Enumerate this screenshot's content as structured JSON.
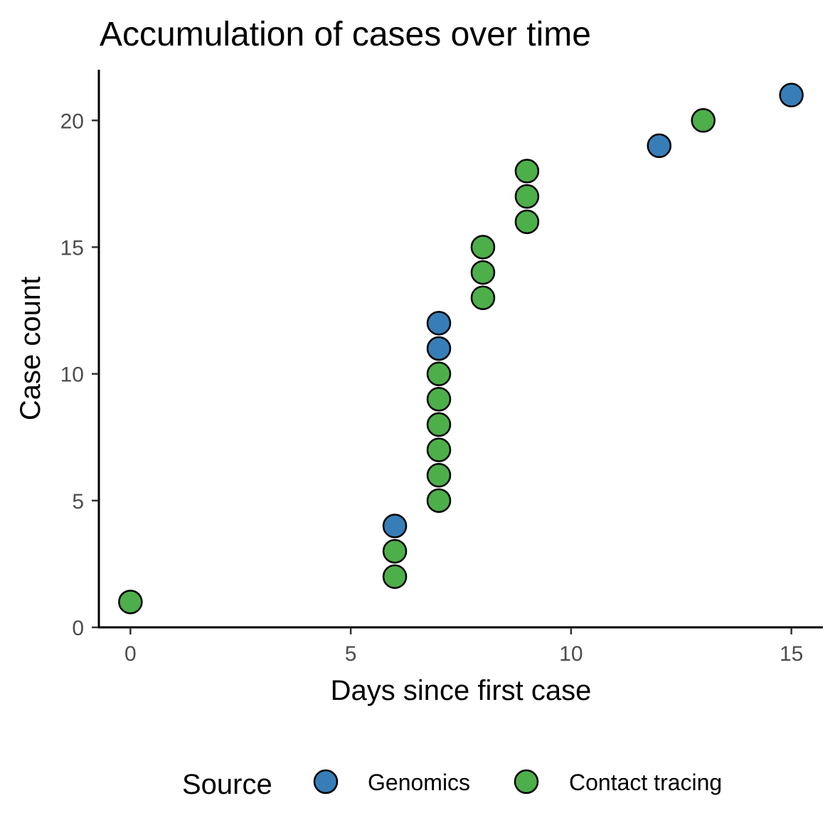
{
  "chart_data": {
    "type": "scatter",
    "title": "Accumulation of cases over time",
    "xlabel": "Days since first case",
    "ylabel": "Case count",
    "xlim": [
      -0.7,
      15.7
    ],
    "ylim": [
      0,
      22
    ],
    "xticks": [
      "0",
      "5",
      "10",
      "15"
    ],
    "yticks": [
      "0",
      "5",
      "10",
      "15",
      "20"
    ],
    "grid": false,
    "legend": {
      "title": "Source",
      "position": "bottom",
      "entries": [
        {
          "name": "Genomics",
          "color": "#377EB8"
        },
        {
          "name": "Contact tracing",
          "color": "#4DAF4A"
        }
      ]
    },
    "series": [
      {
        "name": "Genomics",
        "color": "#377EB8",
        "points": [
          [
            6,
            4
          ],
          [
            7,
            11
          ],
          [
            7,
            12
          ],
          [
            12,
            19
          ],
          [
            15,
            21
          ]
        ]
      },
      {
        "name": "Contact tracing",
        "color": "#4DAF4A",
        "points": [
          [
            0,
            1
          ],
          [
            6,
            2
          ],
          [
            6,
            3
          ],
          [
            7,
            5
          ],
          [
            7,
            6
          ],
          [
            7,
            7
          ],
          [
            7,
            8
          ],
          [
            7,
            9
          ],
          [
            7,
            10
          ],
          [
            8,
            13
          ],
          [
            8,
            14
          ],
          [
            8,
            15
          ],
          [
            9,
            16
          ],
          [
            9,
            17
          ],
          [
            9,
            18
          ],
          [
            13,
            20
          ]
        ]
      }
    ]
  }
}
